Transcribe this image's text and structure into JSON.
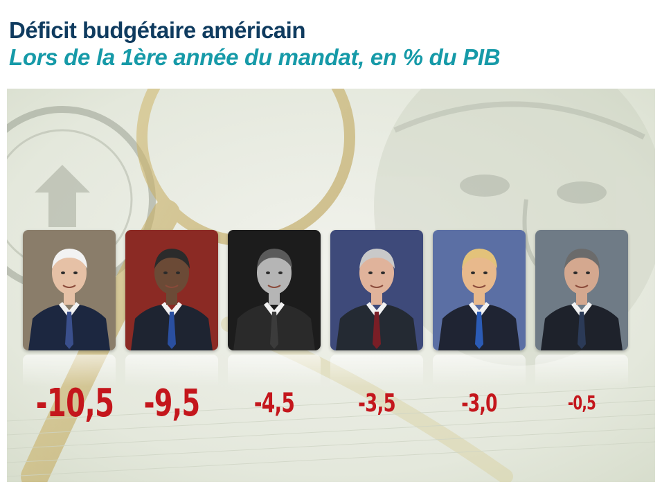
{
  "header": {
    "title": "Déficit budgétaire américain",
    "subtitle": "Lors de la 1ère année du mandat, en % du PIB"
  },
  "colors": {
    "title": "#0f3b5f",
    "subtitle": "#169aa8",
    "values": "#c4161c",
    "background_tint": "#e9ece3"
  },
  "chart_data": {
    "type": "bar",
    "title": "Déficit budgétaire américain",
    "subtitle": "Lors de la 1ère année du mandat, en % du PIB",
    "categories": [
      "",
      "",
      "",
      "",
      "",
      ""
    ],
    "values": [
      -10.5,
      -9.5,
      -4.5,
      -3.5,
      -3.0,
      -0.5
    ],
    "value_labels": [
      "-10,5",
      "-9,5",
      "-4,5",
      "-3,5",
      "-3,0",
      "-0,5"
    ],
    "encoding": "value shown by label size under each portrait",
    "portraits": [
      {
        "background": "#8a7d6a",
        "suit": "#1c2740",
        "tie": "#3a4f8c",
        "skin": "#e6c1a6",
        "hair": "#f2f2f2"
      },
      {
        "background": "#8b2a24",
        "suit": "#1e2431",
        "tie": "#2a4fa0",
        "skin": "#6b4a36",
        "hair": "#2b2b2b"
      },
      {
        "background": "#1c1c1c",
        "suit": "#2a2a2a",
        "tie": "#3b3b3b",
        "skin": "#b5b5b5",
        "hair": "#5a5a5a"
      },
      {
        "background": "#3e4a7a",
        "suit": "#242a33",
        "tie": "#7a1e26",
        "skin": "#e0b39b",
        "hair": "#c9c9c9"
      },
      {
        "background": "#5b6fa4",
        "suit": "#1f2433",
        "tie": "#2b5bb5",
        "skin": "#e8b98c",
        "hair": "#e3c27a"
      },
      {
        "background": "#6f7b86",
        "suit": "#1e222b",
        "tie": "#2b3a57",
        "skin": "#d4a88f",
        "hair": "#6b6b6b"
      }
    ]
  }
}
